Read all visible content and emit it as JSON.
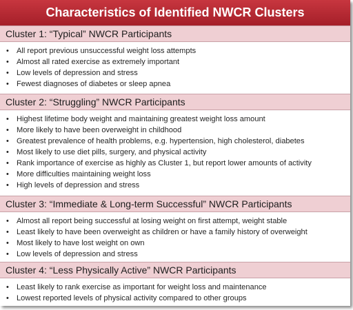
{
  "title": "Characteristics of Identified NWCR Clusters",
  "clusters": [
    {
      "heading": "Cluster 1: “Typical” NWCR Participants",
      "bullets": [
        "All report previous unsuccessful weight loss attempts",
        "Almost all rated exercise as extremely important",
        "Low levels of depression and stress",
        "Fewest diagnoses of diabetes or sleep apnea"
      ]
    },
    {
      "heading": "Cluster 2: “Struggling” NWCR Participants",
      "bullets": [
        "Highest lifetime body weight and maintaining greatest weight loss amount",
        "More likely to have been overweight in childhood",
        "Greatest prevalence of health problems, e.g. hypertension, high cholesterol, diabetes",
        "Most likely to use diet pills, surgery, and physical activity",
        "Rank importance of exercise as highly as Cluster 1, but report lower amounts of activity",
        "More difficulties maintaining weight loss",
        "High levels of depression and stress"
      ]
    },
    {
      "heading": "Cluster 3: “Immediate & Long-term Successful” NWCR Participants",
      "bullets": [
        "Almost all report being successful at losing weight on first attempt, weight stable",
        "Least likely to have been overweight as children or have a family history of overweight",
        "Most likely to have lost weight on own",
        "Low levels of depression and stress"
      ]
    },
    {
      "heading": "Cluster 4: “Less Physically Active” NWCR Participants",
      "bullets": [
        "Least likely to rank exercise as important for weight loss and maintenance",
        "Lowest reported levels of physical activity compared to other groups"
      ]
    }
  ],
  "colors": {
    "title_background": "#b42a33",
    "title_text": "#ffffff",
    "heading_background": "#efcfd3"
  }
}
